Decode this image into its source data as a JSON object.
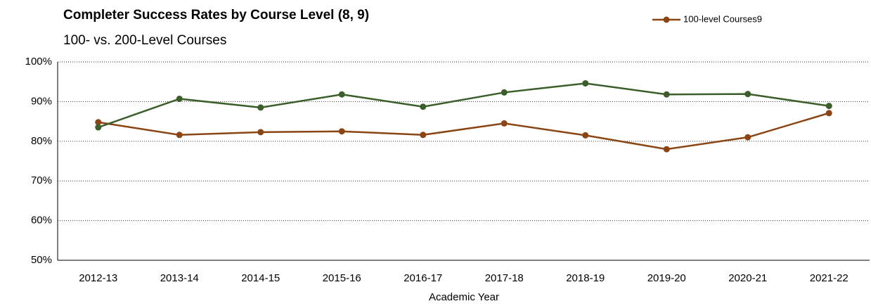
{
  "chart_data": {
    "type": "line",
    "title": "Completer Success Rates by Course Level (8, 9)",
    "subtitle": "100- vs. 200-Level Courses",
    "x_label": "Academic Year",
    "categories": [
      "2012-13",
      "2013-14",
      "2014-15",
      "2015-16",
      "2016-17",
      "2017-18",
      "2018-19",
      "2019-20",
      "2020-21",
      "2021-22"
    ],
    "series": [
      {
        "name": "100-level Courses9",
        "color": "#8b4513",
        "values": [
          84.8,
          81.6,
          82.3,
          82.5,
          81.6,
          84.5,
          81.5,
          78.0,
          81.0,
          87.1
        ]
      },
      {
        "color": "#3b5e2b",
        "values": [
          83.5,
          90.7,
          88.5,
          91.8,
          88.7,
          92.3,
          94.6,
          91.8,
          91.9,
          88.9
        ]
      }
    ],
    "ylim": [
      50,
      100
    ],
    "yticks": [
      {
        "value": 50,
        "label": "50%"
      },
      {
        "value": 60,
        "label": "60%"
      },
      {
        "value": 70,
        "label": "70%"
      },
      {
        "value": 80,
        "label": "80%"
      },
      {
        "value": 90,
        "label": "90%"
      },
      {
        "value": 100,
        "label": "100%"
      }
    ],
    "grid": true,
    "legend": "top-right"
  }
}
